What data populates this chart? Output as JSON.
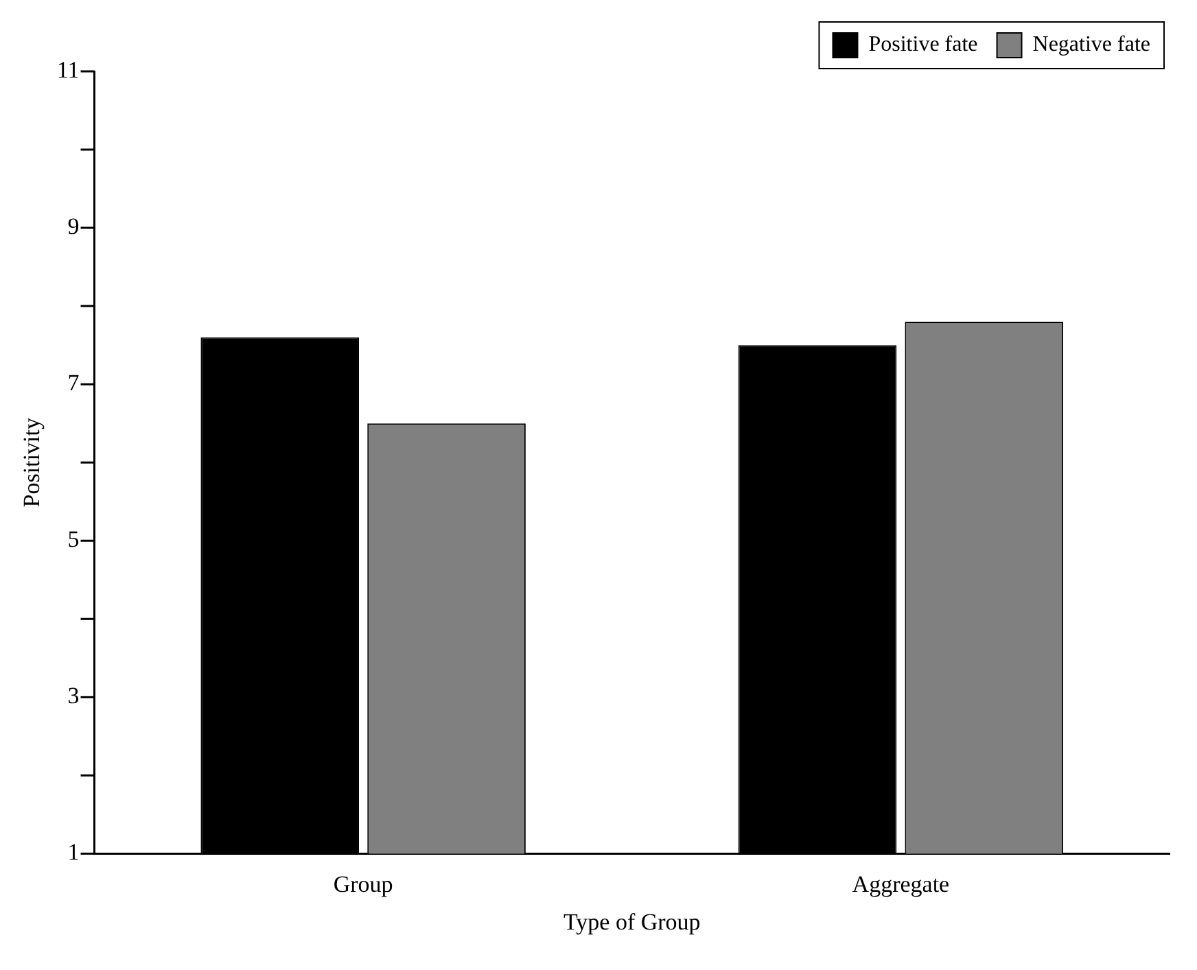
{
  "chart_data": {
    "type": "bar",
    "xlabel": "Type of Group",
    "ylabel": "Positivity",
    "categories": [
      "Group",
      "Aggregate"
    ],
    "series": [
      {
        "name": "Positive fate",
        "color": "#000000",
        "values": [
          7.6,
          7.5
        ]
      },
      {
        "name": "Negative fate",
        "color": "#808080",
        "values": [
          6.5,
          7.8
        ]
      }
    ],
    "ylim": [
      1,
      11
    ],
    "yticks": [
      1,
      {
        "value": 2,
        "label": null
      },
      3,
      {
        "value": 4,
        "label": null
      },
      5,
      {
        "value": 6,
        "label": null
      },
      7,
      {
        "value": 8,
        "label": null
      },
      9,
      {
        "value": 10,
        "label": null
      },
      11
    ],
    "grid": false,
    "legend": "top right"
  }
}
